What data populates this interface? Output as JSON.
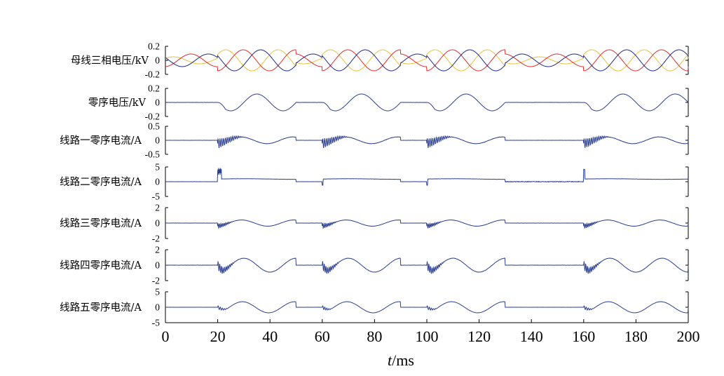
{
  "chart_data": {
    "type": "line",
    "xlabel": {
      "var": "t",
      "unit": "/ms"
    },
    "x_range": [
      0,
      200
    ],
    "x_ticks": [
      0,
      20,
      40,
      60,
      80,
      100,
      120,
      140,
      160,
      180,
      200
    ],
    "fault_times_ms": [
      20,
      60,
      100,
      160
    ],
    "colors": {
      "phase_a": "#e8c23a",
      "phase_b": "#e22a2a",
      "phase_c": "#1f2a8a",
      "signal": "#2c3f8f"
    },
    "panels": [
      {
        "ylabel": "母线三相电压/kV",
        "ylim": [
          -0.2,
          0.2
        ],
        "ytick_labels": [
          "0.2",
          "0",
          "-0.2"
        ],
        "series": [
          {
            "color_key": "phase_a",
            "description": "phase voltage, amplitude ~0.05 kV before fault, ~0.15 kV during faults"
          },
          {
            "color_key": "phase_b",
            "description": "phase voltage, amplitude ~0.09 kV before fault, ~0.15 kV during faults"
          },
          {
            "color_key": "phase_c",
            "description": "phase voltage, amplitude ~0.09 kV before fault, ~0.15 kV during faults"
          }
        ]
      },
      {
        "ylabel": "零序电压/kV",
        "ylim": [
          -0.2,
          0.2
        ],
        "ytick_labels": [
          "0.2",
          "0",
          "-0.2"
        ],
        "series": [
          {
            "color_key": "signal",
            "amplitude": 0.12
          }
        ]
      },
      {
        "ylabel": "线路一零序电流/A",
        "ylim": [
          -0.5,
          0.5
        ],
        "ytick_labels": [
          "0.5",
          "0",
          "-0.5"
        ],
        "series": [
          {
            "color_key": "signal",
            "amplitude": 0.12
          }
        ]
      },
      {
        "ylabel": "线路二零序电流/A",
        "ylim": [
          -5,
          5
        ],
        "ytick_labels": [
          "5",
          "0",
          "-5"
        ],
        "series": [
          {
            "color_key": "signal",
            "amplitude": 0.8
          }
        ]
      },
      {
        "ylabel": "线路三零序电流/A",
        "ylim": [
          -2,
          2
        ],
        "ytick_labels": [
          "2",
          "0",
          "-2"
        ],
        "series": [
          {
            "color_key": "signal",
            "amplitude": 0.4
          }
        ]
      },
      {
        "ylabel": "线路四零序电流/A",
        "ylim": [
          -2,
          2
        ],
        "ytick_labels": [
          "2",
          "0",
          "-2"
        ],
        "series": [
          {
            "color_key": "signal",
            "amplitude": 0.9
          }
        ]
      },
      {
        "ylabel": "线路五零序电流/A",
        "ylim": [
          -5,
          5
        ],
        "ytick_labels": [
          "5",
          "0",
          "-5"
        ],
        "series": [
          {
            "color_key": "signal",
            "amplitude": 1.8
          }
        ]
      }
    ]
  }
}
